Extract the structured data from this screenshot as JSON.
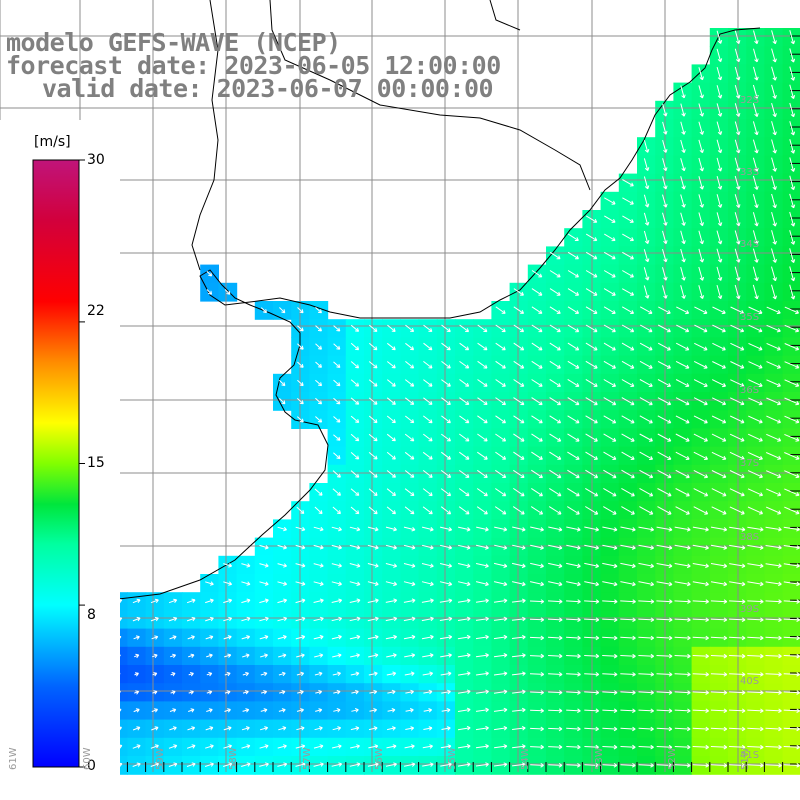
{
  "title": {
    "line1": "modelo GEFS-WAVE (NCEP)",
    "line2": "forecast date: 2023-06-05 12:00:00",
    "line3": "valid date: 2023-06-07 00:00:00"
  },
  "colorbar": {
    "units": "[m/s]",
    "ticks": [
      "30",
      "22",
      "15",
      "8",
      "0"
    ],
    "tick_values": [
      30,
      22,
      15,
      8,
      0
    ],
    "range": [
      0,
      30
    ],
    "colors": [
      "#0000ff",
      "#0080ff",
      "#00ffff",
      "#00ff80",
      "#00c000",
      "#80ff00",
      "#ffff00",
      "#ff8000",
      "#ff0000",
      "#c00060",
      "#c0147a"
    ]
  },
  "lat_labels": [
    "32S",
    "33S",
    "34S",
    "35S",
    "36S",
    "37S",
    "38S",
    "39S",
    "40S",
    "41S"
  ],
  "lon_labels": [
    "61W",
    "60W",
    "59W",
    "58W",
    "57W",
    "56W",
    "55W",
    "54W",
    "53W",
    "52W",
    "51W"
  ],
  "chart_data": {
    "type": "heatmap",
    "variable": "wind speed",
    "units": "m/s",
    "lon_range": [
      "61W",
      "51W"
    ],
    "lat_range": [
      "31S",
      "41S"
    ],
    "value_range": [
      0,
      30
    ],
    "typical_values": {
      "nearshore_plata": "5-8",
      "offshore_east": "12-15",
      "southwest_band": "2-5"
    }
  }
}
